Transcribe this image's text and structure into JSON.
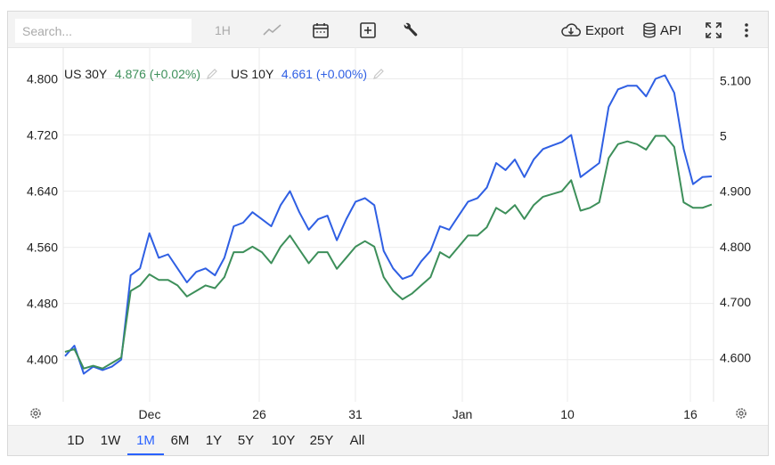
{
  "toolbar": {
    "search_placeholder": "Search...",
    "interval_label": "1H",
    "export_label": "Export",
    "api_label": "API",
    "icons": [
      "line-chart-icon",
      "calendar-icon",
      "plus-box-icon",
      "wrench-icon",
      "cloud-download-icon",
      "database-icon",
      "fullscreen-icon",
      "more-vertical-icon"
    ]
  },
  "legend": [
    {
      "name": "US 30Y",
      "value": "4.876",
      "change": "(+0.02%)",
      "color": "#3d8f5a"
    },
    {
      "name": "US 10Y",
      "value": "4.661",
      "change": "(+0.00%)",
      "color": "#2f5fe3"
    }
  ],
  "ranges": {
    "items": [
      "1D",
      "1W",
      "1M",
      "6M",
      "1Y",
      "5Y",
      "10Y",
      "25Y",
      "All"
    ],
    "active": "1M"
  },
  "chart_data": {
    "type": "line",
    "x_tick_labels": [
      "Dec",
      "26",
      "31",
      "Jan",
      "10",
      "16"
    ],
    "left_axis": {
      "ticks": [
        "4.800",
        "4.720",
        "4.640",
        "4.560",
        "4.480",
        "4.400"
      ],
      "range": [
        4.34,
        4.845
      ]
    },
    "right_axis": {
      "ticks": [
        "5.100",
        "5",
        "4.900",
        "4.800",
        "4.700",
        "4.600"
      ],
      "range": [
        4.52,
        5.16
      ]
    },
    "grid": true,
    "legend_position": "top-left",
    "series": [
      {
        "name": "US 10Y",
        "axis": "left",
        "color": "#2f5fe3",
        "values": [
          4.405,
          4.42,
          4.38,
          4.39,
          4.385,
          4.39,
          4.4,
          4.52,
          4.53,
          4.58,
          4.545,
          4.55,
          4.53,
          4.51,
          4.525,
          4.53,
          4.52,
          4.545,
          4.59,
          4.595,
          4.61,
          4.6,
          4.59,
          4.62,
          4.64,
          4.61,
          4.585,
          4.6,
          4.605,
          4.57,
          4.6,
          4.625,
          4.63,
          4.62,
          4.555,
          4.53,
          4.515,
          4.52,
          4.54,
          4.555,
          4.59,
          4.585,
          4.605,
          4.625,
          4.63,
          4.645,
          4.68,
          4.67,
          4.685,
          4.66,
          4.685,
          4.7,
          4.705,
          4.71,
          4.72,
          4.66,
          4.67,
          4.68,
          4.76,
          4.785,
          4.79,
          4.79,
          4.775,
          4.8,
          4.805,
          4.78,
          4.7,
          4.65,
          4.66,
          4.661
        ]
      },
      {
        "name": "US 30Y",
        "axis": "right",
        "color": "#3d8f5a",
        "values": [
          4.61,
          4.615,
          4.58,
          4.585,
          4.58,
          4.59,
          4.6,
          4.72,
          4.73,
          4.75,
          4.74,
          4.74,
          4.73,
          4.71,
          4.72,
          4.73,
          4.725,
          4.745,
          4.79,
          4.79,
          4.8,
          4.79,
          4.77,
          4.8,
          4.82,
          4.795,
          4.77,
          4.79,
          4.79,
          4.76,
          4.78,
          4.8,
          4.81,
          4.8,
          4.745,
          4.72,
          4.705,
          4.715,
          4.73,
          4.745,
          4.79,
          4.78,
          4.8,
          4.82,
          4.82,
          4.835,
          4.87,
          4.86,
          4.875,
          4.85,
          4.875,
          4.89,
          4.895,
          4.9,
          4.92,
          4.865,
          4.87,
          4.88,
          4.96,
          4.985,
          4.99,
          4.985,
          4.975,
          5.0,
          5.0,
          4.98,
          4.88,
          4.87,
          4.87,
          4.876
        ]
      }
    ]
  }
}
